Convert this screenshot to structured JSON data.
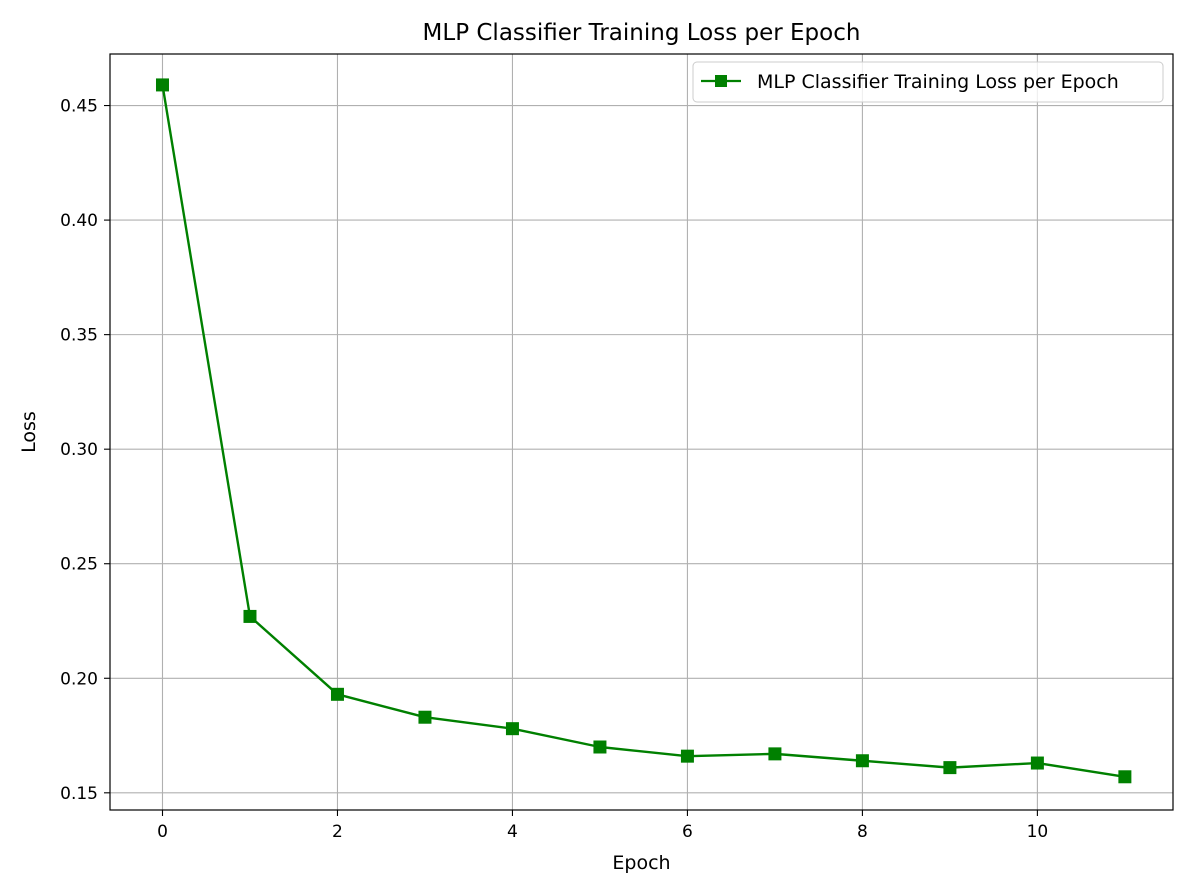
{
  "chart_data": {
    "type": "line",
    "title": "MLP Classifier Training Loss per Epoch",
    "xlabel": "Epoch",
    "ylabel": "Loss",
    "xlim": [
      -0.6,
      11.55
    ],
    "ylim": [
      0.1425,
      0.4725
    ],
    "x_ticks": [
      0,
      2,
      4,
      6,
      8,
      10
    ],
    "x_tick_labels": [
      "0",
      "2",
      "4",
      "6",
      "8",
      "10"
    ],
    "y_ticks": [
      0.15,
      0.2,
      0.25,
      0.3,
      0.35,
      0.4,
      0.45
    ],
    "y_tick_labels": [
      "0.15",
      "0.20",
      "0.25",
      "0.30",
      "0.35",
      "0.40",
      "0.45"
    ],
    "grid": true,
    "legend_position": "top-right",
    "series": [
      {
        "name": "MLP Classifier Training Loss per Epoch",
        "color": "#008000",
        "marker": "square",
        "x": [
          0,
          1,
          2,
          3,
          4,
          5,
          6,
          7,
          8,
          9,
          10,
          11
        ],
        "y": [
          0.459,
          0.227,
          0.193,
          0.183,
          0.178,
          0.17,
          0.166,
          0.167,
          0.164,
          0.161,
          0.163,
          0.157
        ]
      }
    ]
  }
}
